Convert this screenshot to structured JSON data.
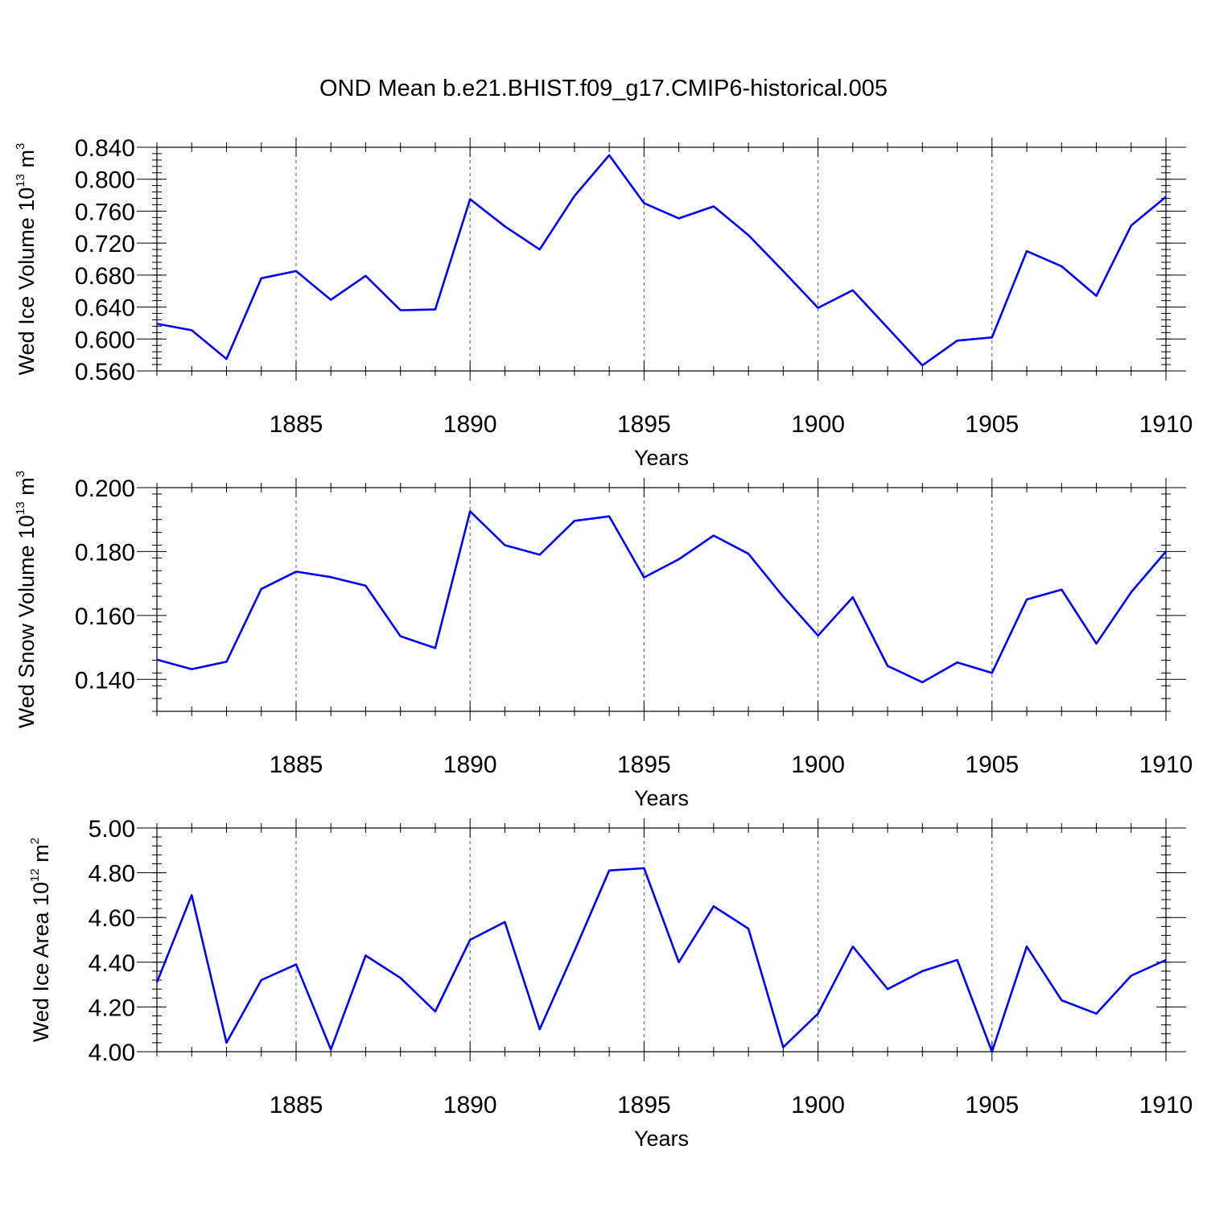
{
  "title": "OND Mean b.e21.BHIST.f09_g17.CMIP6-historical.005",
  "line_color": "#0000ff",
  "chart_data": [
    {
      "type": "line",
      "ylabel_main": "Wed Ice Volume 10",
      "ylabel_exp": "13",
      "ylabel_unit": " m",
      "ylabel_unit_exp": "3",
      "xlabel": "Years",
      "xlim": [
        1881,
        1910
      ],
      "ylim": [
        0.56,
        0.84
      ],
      "ytick_values": [
        0.56,
        0.6,
        0.64,
        0.68,
        0.72,
        0.76,
        0.8,
        0.84
      ],
      "ytick_labels": [
        "0.560",
        "0.600",
        "0.640",
        "0.680",
        "0.720",
        "0.760",
        "0.800",
        "0.840"
      ],
      "xtick_values": [
        1885,
        1890,
        1895,
        1900,
        1905,
        1910
      ],
      "xtick_labels": [
        "1885",
        "1890",
        "1895",
        "1900",
        "1905",
        "1910"
      ],
      "x": [
        1881,
        1882,
        1883,
        1884,
        1885,
        1886,
        1887,
        1888,
        1889,
        1890,
        1891,
        1892,
        1893,
        1894,
        1895,
        1896,
        1897,
        1898,
        1899,
        1900,
        1901,
        1902,
        1903,
        1904,
        1905,
        1906,
        1907,
        1908,
        1909,
        1910
      ],
      "y": [
        0.619,
        0.611,
        0.575,
        0.676,
        0.685,
        0.649,
        0.679,
        0.636,
        0.637,
        0.775,
        0.741,
        0.712,
        0.779,
        0.83,
        0.77,
        0.751,
        0.766,
        0.73,
        0.685,
        0.639,
        0.661,
        0.614,
        0.567,
        0.598,
        0.602,
        0.71,
        0.691,
        0.654,
        0.742,
        0.778
      ]
    },
    {
      "type": "line",
      "ylabel_main": "Wed Snow Volume 10",
      "ylabel_exp": "13",
      "ylabel_unit": " m",
      "ylabel_unit_exp": "3",
      "xlabel": "Years",
      "xlim": [
        1881,
        1910
      ],
      "ylim": [
        0.13,
        0.2
      ],
      "ytick_values": [
        0.14,
        0.16,
        0.18,
        0.2
      ],
      "ytick_labels": [
        "0.140",
        "0.160",
        "0.180",
        "0.200"
      ],
      "xtick_values": [
        1885,
        1890,
        1895,
        1900,
        1905,
        1910
      ],
      "xtick_labels": [
        "1885",
        "1890",
        "1895",
        "1900",
        "1905",
        "1910"
      ],
      "x": [
        1881,
        1882,
        1883,
        1884,
        1885,
        1886,
        1887,
        1888,
        1889,
        1890,
        1891,
        1892,
        1893,
        1894,
        1895,
        1896,
        1897,
        1898,
        1899,
        1900,
        1901,
        1902,
        1903,
        1904,
        1905,
        1906,
        1907,
        1908,
        1909,
        1910
      ],
      "y": [
        0.1462,
        0.1432,
        0.1455,
        0.1683,
        0.1737,
        0.172,
        0.1693,
        0.1535,
        0.1498,
        0.1926,
        0.182,
        0.179,
        0.1896,
        0.191,
        0.1719,
        0.1776,
        0.185,
        0.1793,
        0.1659,
        0.1537,
        0.1657,
        0.1442,
        0.1391,
        0.1453,
        0.142,
        0.165,
        0.1681,
        0.1512,
        0.1673,
        0.18
      ]
    },
    {
      "type": "line",
      "ylabel_main": "Wed Ice Area 10",
      "ylabel_exp": "12",
      "ylabel_unit": " m",
      "ylabel_unit_exp": "2",
      "xlabel": "Years",
      "xlim": [
        1881,
        1910
      ],
      "ylim": [
        4.0,
        5.0
      ],
      "ytick_values": [
        4.0,
        4.2,
        4.4,
        4.6,
        4.8,
        5.0
      ],
      "ytick_labels": [
        "4.00",
        "4.20",
        "4.40",
        "4.60",
        "4.80",
        "5.00"
      ],
      "xtick_values": [
        1885,
        1890,
        1895,
        1900,
        1905,
        1910
      ],
      "xtick_labels": [
        "1885",
        "1890",
        "1895",
        "1900",
        "1905",
        "1910"
      ],
      "x": [
        1881,
        1882,
        1883,
        1884,
        1885,
        1886,
        1887,
        1888,
        1889,
        1890,
        1891,
        1892,
        1893,
        1894,
        1895,
        1896,
        1897,
        1898,
        1899,
        1900,
        1901,
        1902,
        1903,
        1904,
        1905,
        1906,
        1907,
        1908,
        1909,
        1910
      ],
      "y": [
        4.31,
        4.7,
        4.04,
        4.32,
        4.39,
        4.01,
        4.43,
        4.33,
        4.18,
        4.5,
        4.58,
        4.1,
        4.45,
        4.81,
        4.82,
        4.4,
        4.65,
        4.55,
        4.02,
        4.17,
        4.47,
        4.28,
        4.36,
        4.41,
        4.0,
        4.47,
        4.23,
        4.17,
        4.34,
        4.41
      ]
    }
  ]
}
